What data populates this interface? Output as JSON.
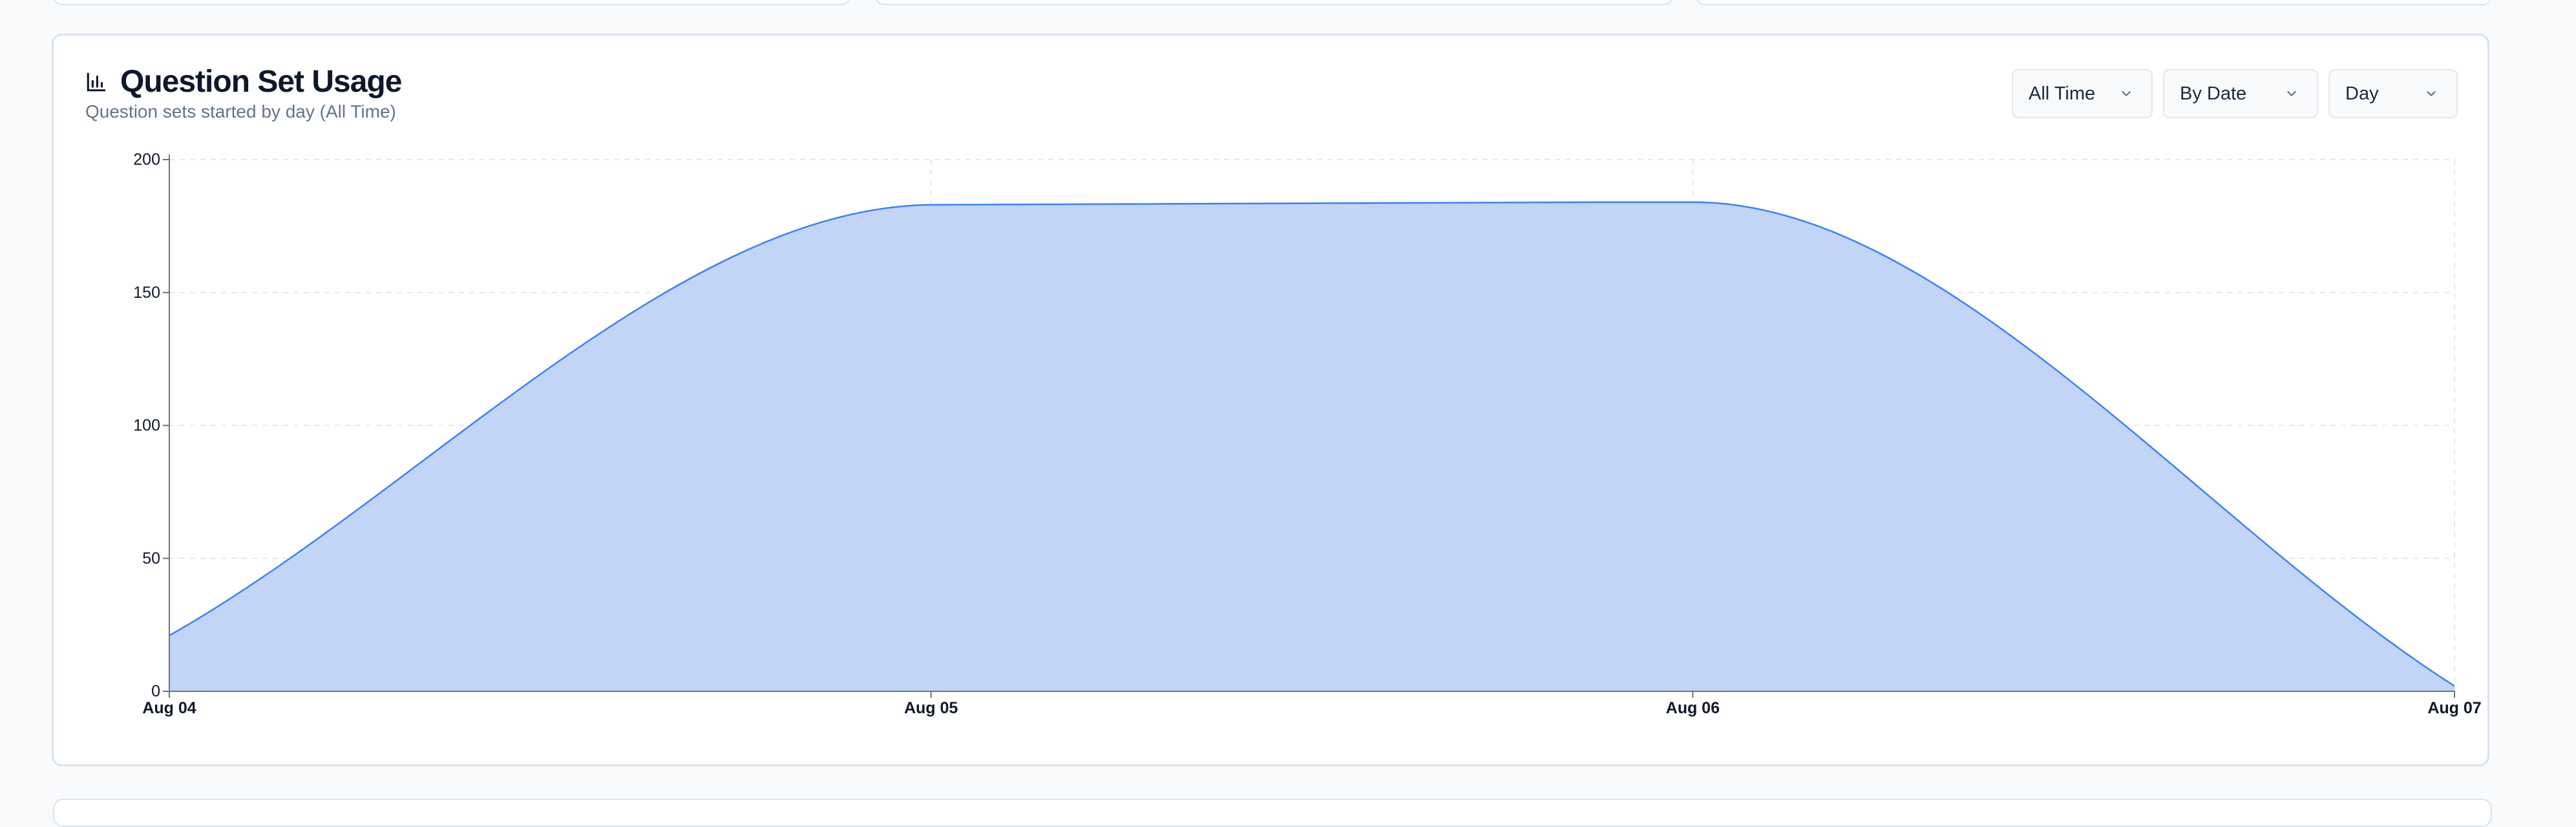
{
  "card": {
    "title": "Question Set Usage",
    "subtitle": "Question sets started by day (All Time)",
    "icon": "bar-chart-icon"
  },
  "controls": {
    "range": "All Time",
    "grouping": "By Date",
    "interval": "Day"
  },
  "colors": {
    "fill": "#c3d5f6",
    "line": "#3b82f6",
    "grid": "#e5e7eb",
    "axis": "#6b7280"
  },
  "chart_data": {
    "type": "area",
    "x": [
      "Aug 04",
      "Aug 05",
      "Aug 06",
      "Aug 07"
    ],
    "values": [
      21,
      183,
      184,
      2
    ],
    "ylim": [
      0,
      200
    ],
    "yticks": [
      0,
      50,
      100,
      150,
      200
    ],
    "grid": true,
    "curve": "smooth (monotone)"
  }
}
